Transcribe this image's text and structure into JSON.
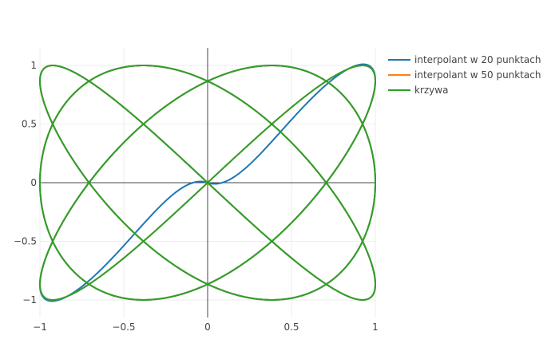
{
  "chart_data": {
    "type": "line",
    "title": "",
    "xlabel": "",
    "ylabel": "",
    "xlim": [
      -1,
      1
    ],
    "ylim": [
      -1.15,
      1.15
    ],
    "x_ticks": [
      -1,
      -0.5,
      0,
      0.5,
      1
    ],
    "x_tick_labels": [
      "−1",
      "−0.5",
      "0",
      "0.5",
      "1"
    ],
    "y_ticks": [
      -1,
      -0.5,
      0,
      0.5,
      1
    ],
    "y_tick_labels": [
      "−1",
      "−0.5",
      "0",
      "0.5",
      "1"
    ],
    "grid": true,
    "zero_lines": true,
    "legend_position": "top-right",
    "curve": {
      "x": "sin(3t)",
      "y": "sin(4t)",
      "t_range": [
        0,
        6.2832
      ]
    },
    "series": [
      {
        "name": "interpolant w 20 punktach",
        "color": "#1f77b4",
        "nodes": 20
      },
      {
        "name": "interpolant w 50 punktach",
        "color": "#ff7f0e",
        "nodes": 50
      },
      {
        "name": "krzywa",
        "color": "#2ca02c",
        "nodes": null
      }
    ]
  }
}
